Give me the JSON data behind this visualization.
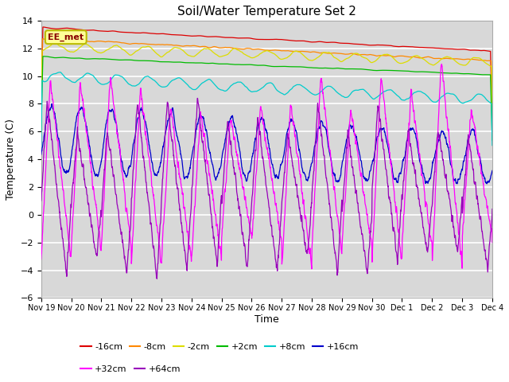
{
  "title": "Soil/Water Temperature Set 2",
  "xlabel": "Time",
  "ylabel": "Temperature (C)",
  "ylim": [
    -6,
    14
  ],
  "yticks": [
    -6,
    -4,
    -2,
    0,
    2,
    4,
    6,
    8,
    10,
    12,
    14
  ],
  "plot_bg_color": "#d8d8d8",
  "grid_color": "#bbbbbb",
  "annotation_text": "EE_met",
  "annotation_bg": "#ffff99",
  "annotation_border": "#bbbb00",
  "colors": {
    "-16cm": "#dd0000",
    "-8cm": "#ff8800",
    "-2cm": "#dddd00",
    "+2cm": "#00bb00",
    "+8cm": "#00cccc",
    "+16cm": "#0000cc",
    "+32cm": "#ff00ff",
    "+64cm": "#9900bb"
  },
  "legend_row1": [
    "-16cm",
    "-8cm",
    "-2cm",
    "+2cm",
    "+8cm",
    "+16cm"
  ],
  "legend_row2": [
    "+32cm",
    "+64cm"
  ],
  "n_points": 1800,
  "days": 15
}
